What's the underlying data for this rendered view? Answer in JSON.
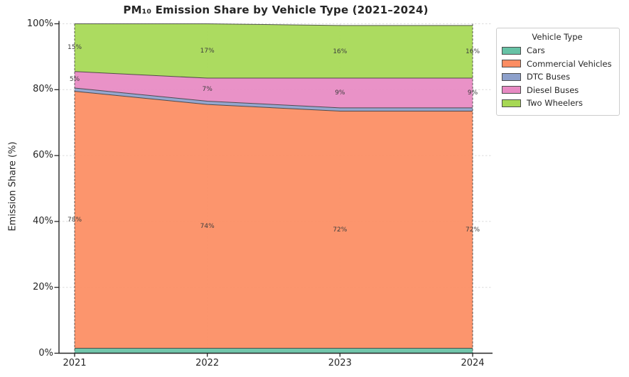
{
  "chart_data": {
    "type": "area",
    "stacked": true,
    "title": "PM₁₀ Emission Share by Vehicle Type (2021–2024)",
    "xlabel": "",
    "ylabel": "Emission Share (%)",
    "x": [
      2021,
      2022,
      2023,
      2024
    ],
    "x_ticklabels": [
      "2021",
      "2022",
      "2023",
      "2024"
    ],
    "y_ticks": [
      0,
      20,
      40,
      60,
      80,
      100
    ],
    "y_ticklabels": [
      "0%",
      "20%",
      "40%",
      "60%",
      "80%",
      "100%"
    ],
    "ylim": [
      0,
      100
    ],
    "grid": true,
    "grid_style": "dashed",
    "grid_color": "#dcdcdc",
    "edge_color": "#333333",
    "series": [
      {
        "name": "Cars",
        "color": "#66c2a5",
        "values": [
          1.5,
          1.5,
          1.5,
          1.5
        ],
        "labels": [
          "",
          "",
          "",
          ""
        ]
      },
      {
        "name": "Commercial Vehicles",
        "color": "#fc8d62",
        "values": [
          78,
          74,
          72,
          72
        ],
        "labels": [
          "78%",
          "74%",
          "72%",
          "72%"
        ]
      },
      {
        "name": "DTC Buses",
        "color": "#8da0cb",
        "values": [
          1,
          1,
          1,
          1
        ],
        "labels": [
          "",
          "",
          "",
          ""
        ]
      },
      {
        "name": "Diesel Buses",
        "color": "#e78ac3",
        "values": [
          5,
          7,
          9,
          9
        ],
        "labels": [
          "5%",
          "7%",
          "9%",
          "9%"
        ]
      },
      {
        "name": "Two Wheelers",
        "color": "#a6d854",
        "values": [
          14.5,
          16.5,
          16,
          16
        ],
        "labels": [
          "15%",
          "17%",
          "16%",
          "16%"
        ]
      }
    ],
    "legend": {
      "title": "Vehicle Type",
      "position": "outside-upper-right"
    }
  }
}
